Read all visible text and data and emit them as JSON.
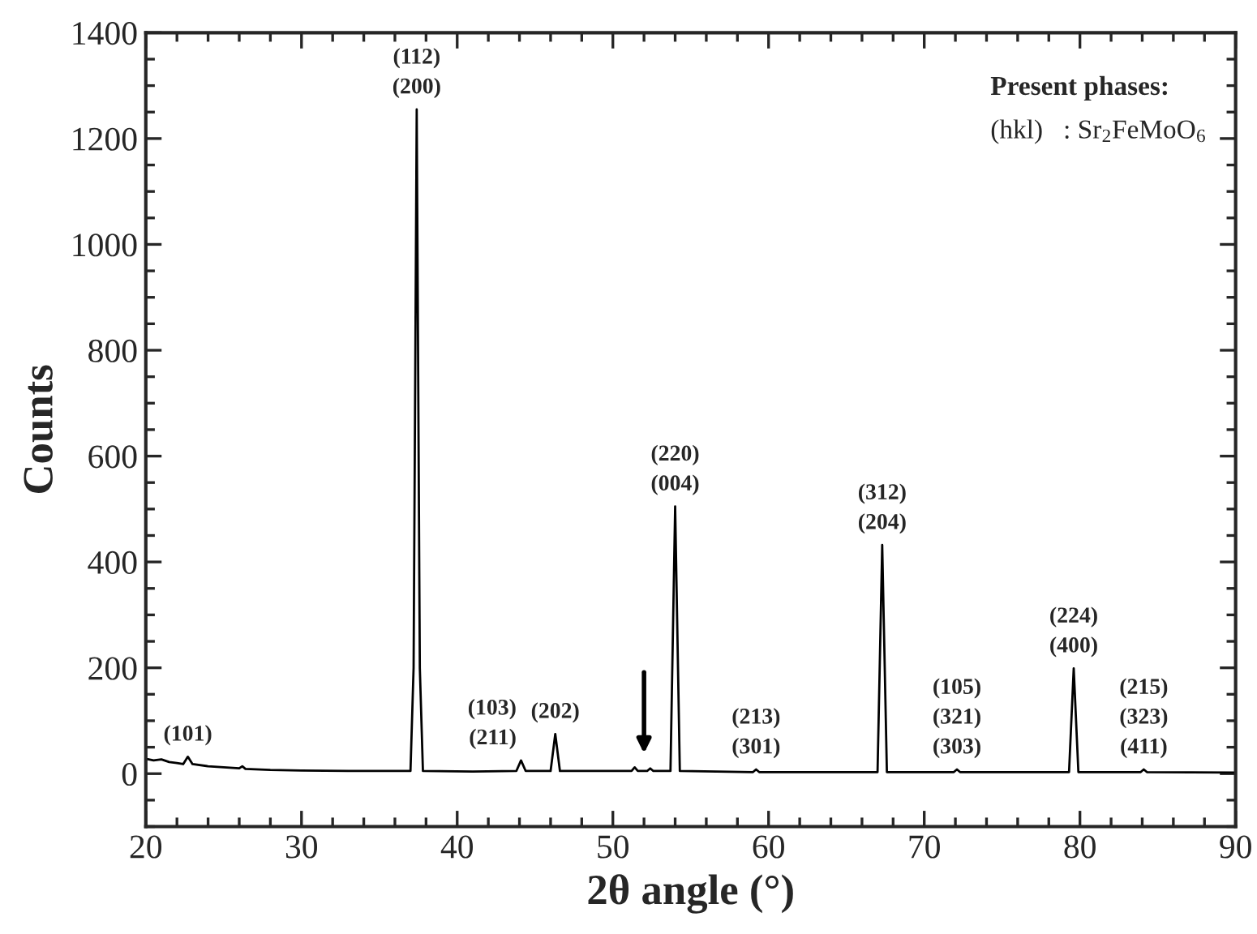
{
  "chart_data": {
    "type": "line",
    "xlabel": "2θ angle (°)",
    "ylabel": "Counts",
    "xlim": [
      20,
      90
    ],
    "xticks": [
      20,
      30,
      40,
      50,
      60,
      70,
      80,
      90
    ],
    "ylim": [
      -100,
      1400
    ],
    "yticks": [
      0,
      200,
      400,
      600,
      800,
      1000,
      1200,
      1400
    ],
    "grid": false,
    "marker": "none",
    "line_style": "solid",
    "series": [
      {
        "color": "#000000",
        "x": [
          20,
          20.5,
          21,
          21.5,
          22,
          22.4,
          22.7,
          23,
          24,
          25,
          26,
          26.2,
          26.4,
          28,
          30,
          33,
          37.0,
          37.2,
          37.4,
          37.6,
          37.8,
          41,
          43.8,
          44.1,
          44.4,
          46.0,
          46.3,
          46.6,
          51.2,
          51.4,
          51.6,
          52.2,
          52.4,
          52.6,
          53.7,
          54.0,
          54.3,
          59.0,
          59.2,
          59.4,
          67.0,
          67.3,
          67.6,
          71.9,
          72.1,
          72.3,
          79.3,
          79.6,
          79.9,
          83.9,
          84.1,
          84.3,
          90
        ],
        "values": [
          28,
          25,
          27,
          22,
          20,
          18,
          32,
          18,
          14,
          12,
          10,
          14,
          9,
          7,
          6,
          5,
          5,
          200,
          1255,
          200,
          5,
          4,
          5,
          25,
          5,
          5,
          75,
          5,
          5,
          12,
          5,
          5,
          10,
          5,
          5,
          505,
          5,
          3,
          8,
          3,
          3,
          432,
          3,
          3,
          8,
          3,
          3,
          199,
          3,
          3,
          8,
          3,
          2
        ]
      }
    ],
    "annotations": [
      {
        "text": "(101)",
        "x": 22.7,
        "y": 32
      },
      {
        "text": "(112)\n(200)",
        "x": 37.4,
        "y": 1255
      },
      {
        "text": "(103)\n(211)",
        "x": 44.1,
        "y": 25
      },
      {
        "text": "(202)",
        "x": 46.3,
        "y": 75
      },
      {
        "text": "(220)\n(004)",
        "x": 54.0,
        "y": 505
      },
      {
        "text": "(213)\n(301)",
        "x": 59.2,
        "y": 8
      },
      {
        "text": "(312)\n(204)",
        "x": 67.3,
        "y": 432
      },
      {
        "text": "(105)\n(321)\n(303)",
        "x": 72.1,
        "y": 8
      },
      {
        "text": "(224)\n(400)",
        "x": 79.6,
        "y": 199
      },
      {
        "text": "(215)\n(323)\n(411)",
        "x": 84.1,
        "y": 8
      },
      "Present phases:",
      "(hkl)   : Sr$_{2}$FeMoO$_{6}$"
    ]
  }
}
